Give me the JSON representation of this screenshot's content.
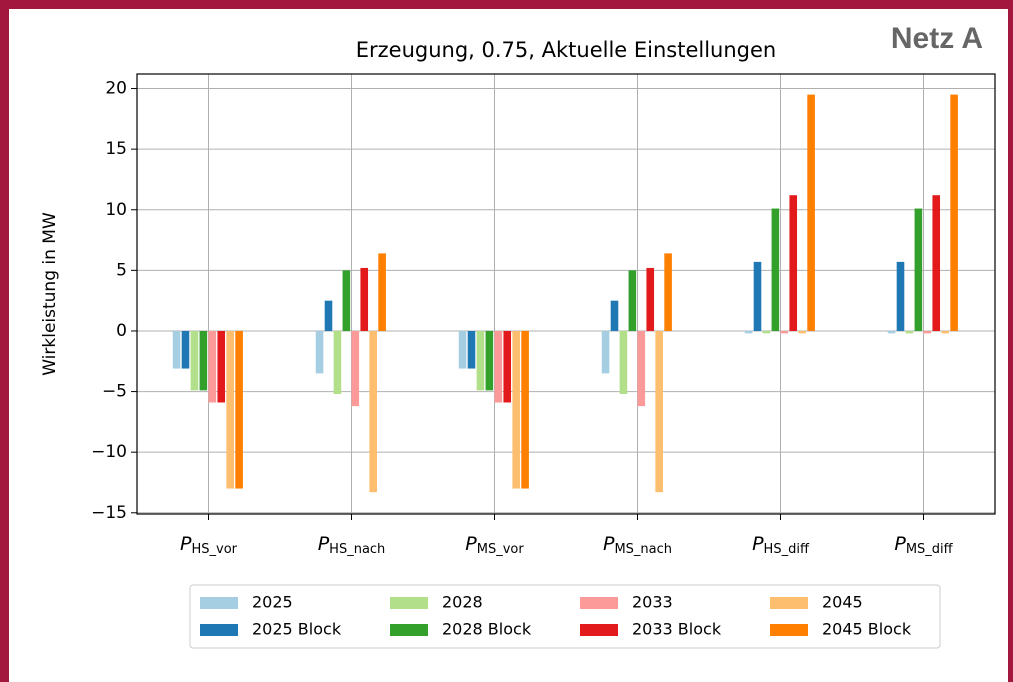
{
  "chart_data": {
    "type": "bar",
    "title": "Erzeugung, 0.75, Aktuelle Einstellungen",
    "corner_label": "Netz A",
    "ylabel": "Wirkleistung in MW",
    "category_symbol": "P",
    "categories": [
      "HS_vor",
      "HS_nach",
      "MS_vor",
      "MS_nach",
      "HS_diff",
      "MS_diff"
    ],
    "series": [
      {
        "name": "2025",
        "color": "#a6cee3",
        "values": [
          -3.1,
          -3.5,
          -3.1,
          -3.5,
          -0.2,
          -0.2
        ]
      },
      {
        "name": "2025 Block",
        "color": "#1f78b4",
        "values": [
          -3.1,
          2.5,
          -3.1,
          2.5,
          5.7,
          5.7
        ]
      },
      {
        "name": "2028",
        "color": "#b2df8a",
        "values": [
          -4.9,
          -5.2,
          -4.9,
          -5.2,
          -0.2,
          -0.2
        ]
      },
      {
        "name": "2028 Block",
        "color": "#33a02c",
        "values": [
          -4.9,
          5.0,
          -4.9,
          5.0,
          10.1,
          10.1
        ]
      },
      {
        "name": "2033",
        "color": "#fb9a99",
        "values": [
          -5.9,
          -6.2,
          -5.9,
          -6.2,
          -0.2,
          -0.2
        ]
      },
      {
        "name": "2033 Block",
        "color": "#e31a1c",
        "values": [
          -5.9,
          5.2,
          -5.9,
          5.2,
          11.2,
          11.2
        ]
      },
      {
        "name": "2045",
        "color": "#fdbf6f",
        "values": [
          -13.0,
          -13.3,
          -13.0,
          -13.3,
          -0.2,
          -0.2
        ]
      },
      {
        "name": "2045 Block",
        "color": "#ff7f00",
        "values": [
          -13.0,
          6.4,
          -13.0,
          6.4,
          19.5,
          19.5
        ]
      }
    ],
    "ylim": [
      -15.1,
      21.2
    ],
    "yticks": [
      {
        "value": -15,
        "label": "−15"
      },
      {
        "value": -10,
        "label": "−10"
      },
      {
        "value": -5,
        "label": "−5"
      },
      0,
      5,
      10,
      15,
      20
    ],
    "grid": true,
    "legend": "bottom"
  }
}
